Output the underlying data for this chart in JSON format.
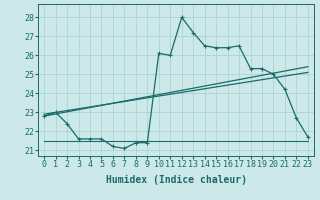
{
  "xlabel": "Humidex (Indice chaleur)",
  "background_color": "#cce8e8",
  "grid_color": "#aad4d4",
  "line_color": "#1a6b6b",
  "xlim": [
    -0.5,
    23.5
  ],
  "ylim": [
    20.7,
    28.7
  ],
  "yticks": [
    21,
    22,
    23,
    24,
    25,
    26,
    27,
    28
  ],
  "xticks": [
    0,
    1,
    2,
    3,
    4,
    5,
    6,
    7,
    8,
    9,
    10,
    11,
    12,
    13,
    14,
    15,
    16,
    17,
    18,
    19,
    20,
    21,
    22,
    23
  ],
  "curve_x": [
    0,
    1,
    2,
    3,
    4,
    5,
    6,
    7,
    8,
    9,
    10,
    11,
    12,
    13,
    14,
    15,
    16,
    17,
    18,
    19,
    20,
    21,
    22,
    23
  ],
  "curve_y": [
    22.8,
    23.0,
    22.4,
    21.6,
    21.6,
    21.6,
    21.2,
    21.1,
    21.4,
    21.4,
    26.1,
    26.0,
    28.0,
    27.2,
    26.5,
    26.4,
    26.4,
    26.5,
    25.3,
    25.3,
    25.0,
    24.2,
    22.7,
    21.7
  ],
  "trend1_x": [
    0,
    23
  ],
  "trend1_y": [
    22.8,
    25.4
  ],
  "trend2_x": [
    0,
    23
  ],
  "trend2_y": [
    22.9,
    25.1
  ],
  "hline_x": [
    0,
    23
  ],
  "hline_y": [
    21.5,
    21.5
  ],
  "xlabel_fontsize": 7,
  "tick_fontsize": 6
}
